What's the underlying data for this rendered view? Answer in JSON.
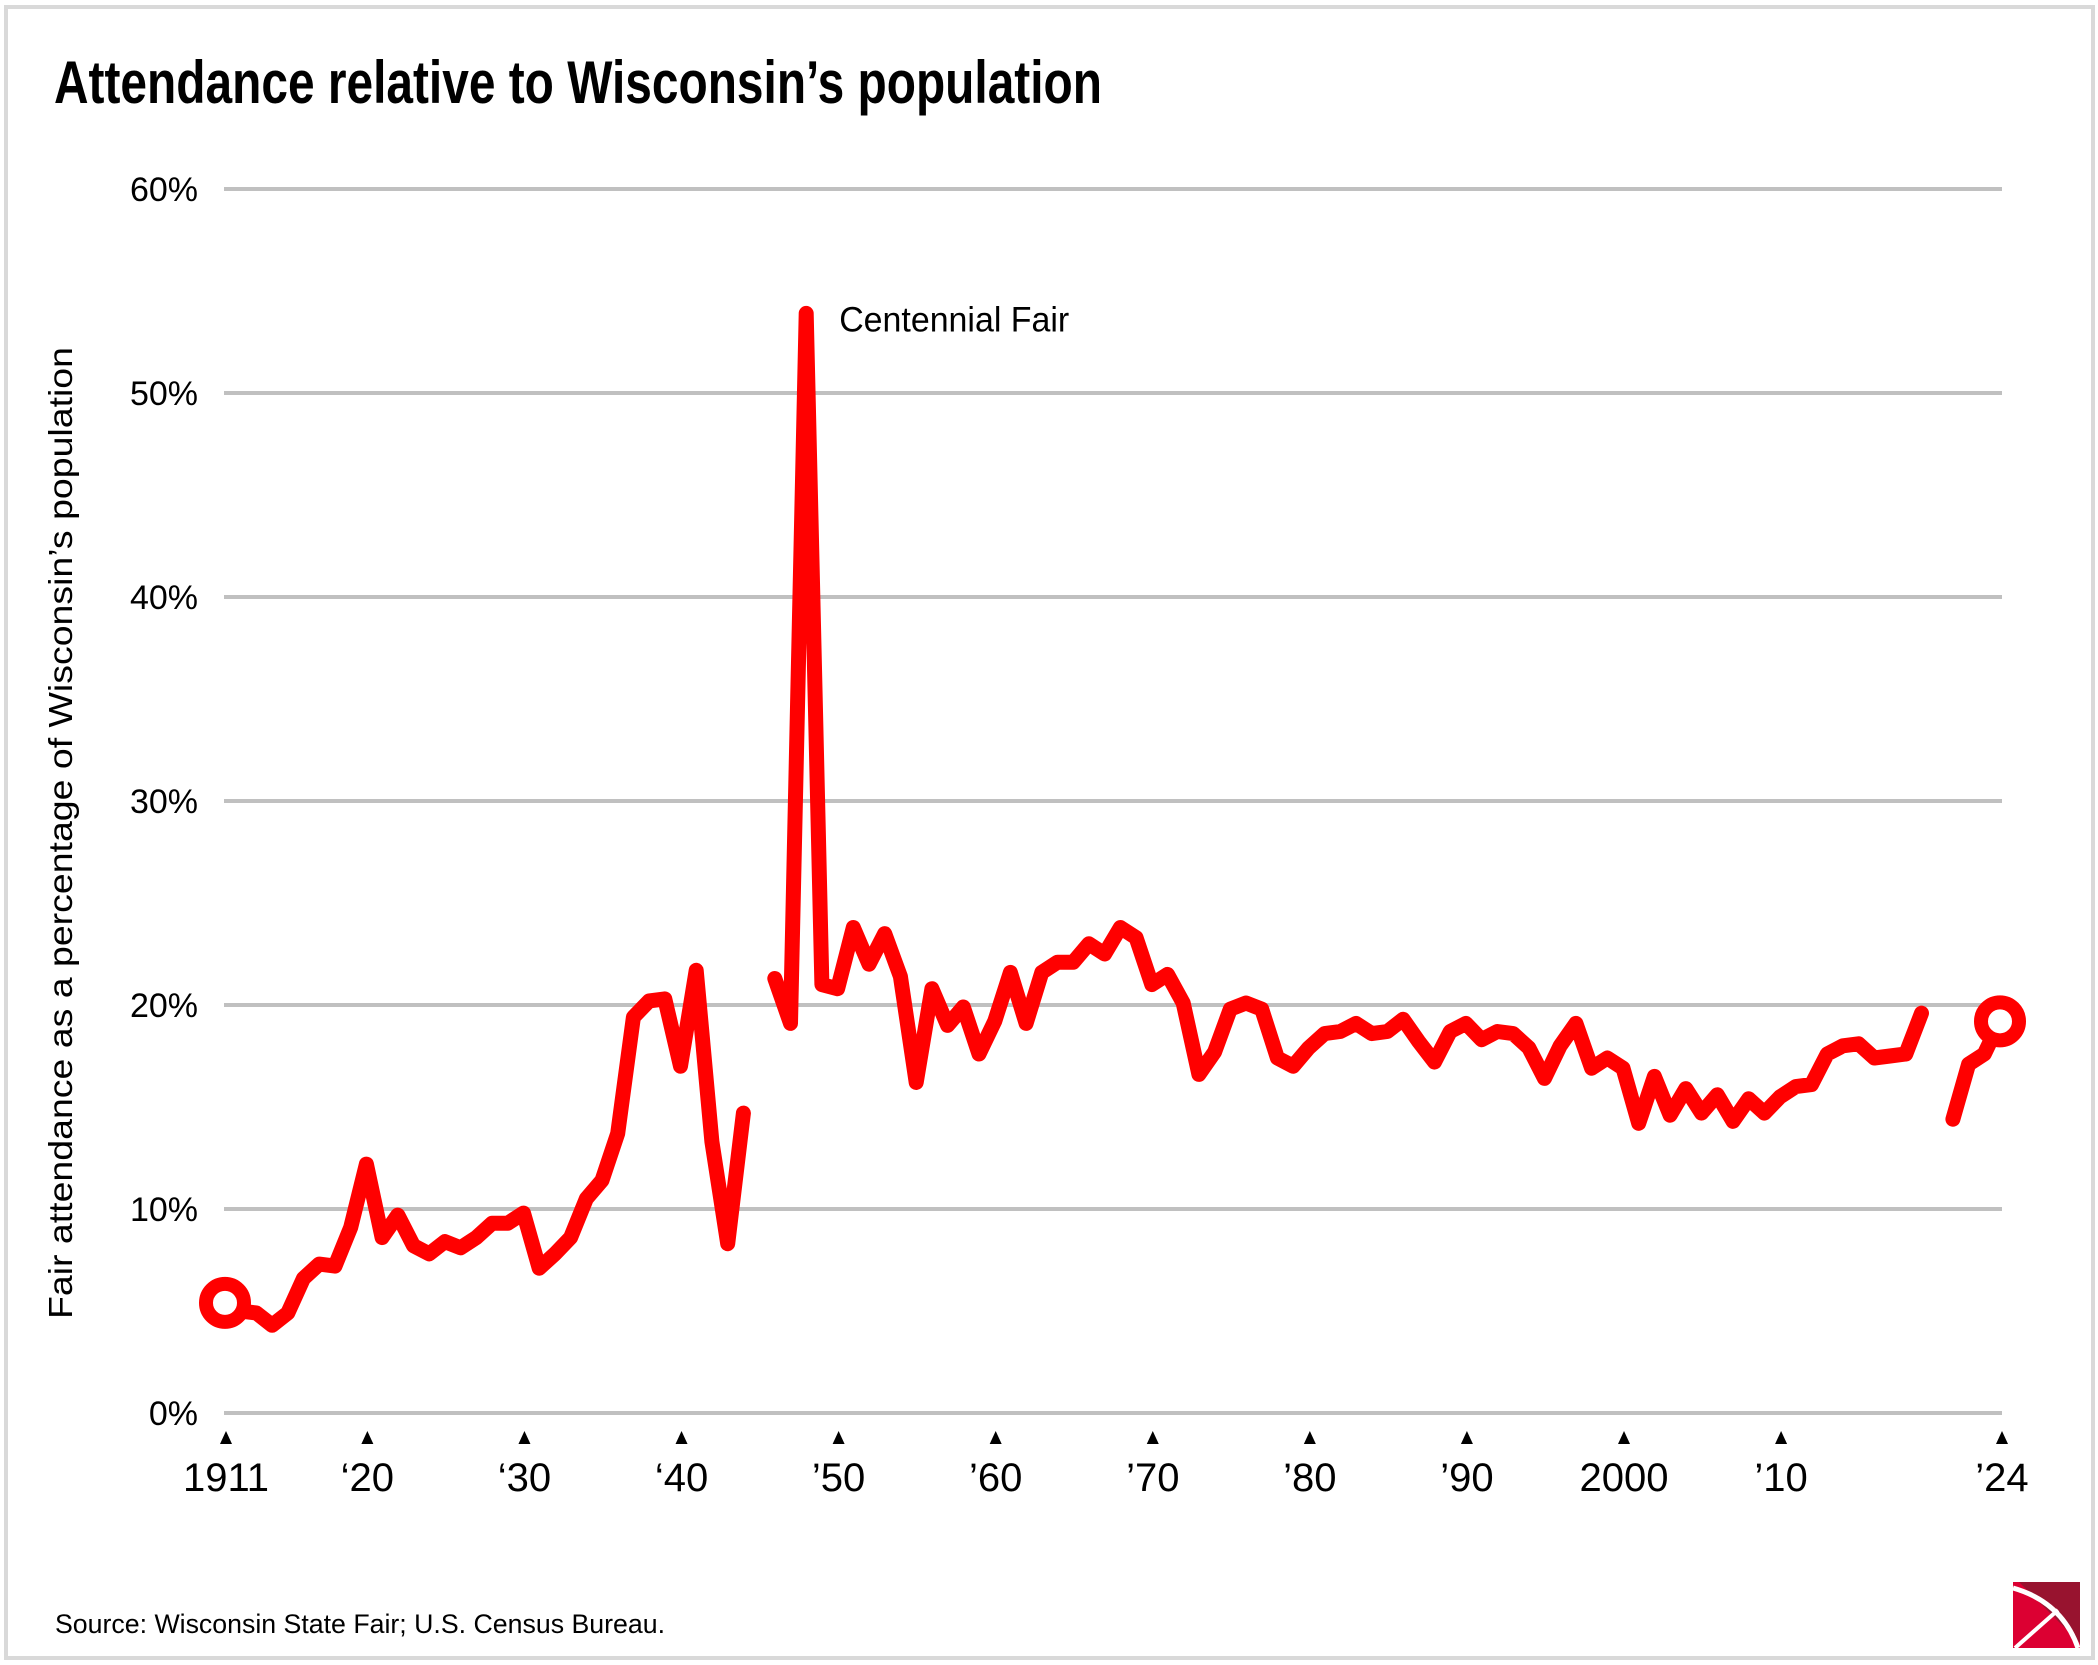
{
  "chart_data": {
    "type": "line",
    "title": "Attendance relative to Wisconsin’s population",
    "xlabel": "",
    "ylabel": "Fair attendance as a percentage of Wisconsin’s population",
    "ylim": [
      0,
      60
    ],
    "xlim": [
      1911,
      2024
    ],
    "grid": true,
    "y_ticks": [
      {
        "value": 0,
        "label": "0%"
      },
      {
        "value": 10,
        "label": "10%"
      },
      {
        "value": 20,
        "label": "20%"
      },
      {
        "value": 30,
        "label": "30%"
      },
      {
        "value": 40,
        "label": "40%"
      },
      {
        "value": 50,
        "label": "50%"
      },
      {
        "value": 60,
        "label": "60%"
      }
    ],
    "x_ticks": [
      {
        "year": 1911,
        "label": "1911"
      },
      {
        "year": 1920,
        "label": "‘20"
      },
      {
        "year": 1930,
        "label": "‘30"
      },
      {
        "year": 1940,
        "label": "‘40"
      },
      {
        "year": 1950,
        "label": "’50"
      },
      {
        "year": 1960,
        "label": "’60"
      },
      {
        "year": 1970,
        "label": "’70"
      },
      {
        "year": 1980,
        "label": "’80"
      },
      {
        "year": 1990,
        "label": "’90"
      },
      {
        "year": 2000,
        "label": "2000"
      },
      {
        "year": 2010,
        "label": "’10"
      },
      {
        "year": 2024,
        "label": "’24"
      }
    ],
    "series": [
      {
        "name": "Fair attendance as % of population",
        "color": "#ff0000",
        "segments": [
          {
            "x": [
              1911,
              1912,
              1913,
              1914,
              1915,
              1916,
              1917,
              1918,
              1919,
              1920,
              1921,
              1922,
              1923,
              1924,
              1925,
              1926,
              1927,
              1928,
              1929,
              1930,
              1931,
              1932,
              1933,
              1934,
              1935,
              1936,
              1937,
              1938,
              1939,
              1940,
              1941,
              1942,
              1943,
              1944
            ],
            "y": [
              5.4,
              5.0,
              4.9,
              4.3,
              4.9,
              6.6,
              7.3,
              7.2,
              9.1,
              12.2,
              8.6,
              9.7,
              8.2,
              7.8,
              8.4,
              8.1,
              8.6,
              9.3,
              9.3,
              9.8,
              7.1,
              7.8,
              8.6,
              10.5,
              11.4,
              13.7,
              19.4,
              20.2,
              20.3,
              17.0,
              21.7,
              13.3,
              8.3,
              14.7
            ]
          },
          {
            "x": [
              1946,
              1947,
              1948,
              1949,
              1950,
              1951,
              1952,
              1953,
              1954,
              1955,
              1956,
              1957,
              1958,
              1959,
              1960,
              1961,
              1962,
              1963,
              1964,
              1965,
              1966,
              1967,
              1968,
              1969,
              1970,
              1971,
              1972,
              1973,
              1974,
              1975,
              1976,
              1977,
              1978,
              1979,
              1980,
              1981,
              1982,
              1983,
              1984,
              1985,
              1986,
              1987,
              1988,
              1989,
              1990,
              1991,
              1992,
              1993,
              1994,
              1995,
              1996,
              1997,
              1998,
              1999,
              2000,
              2001,
              2002,
              2003,
              2004,
              2005,
              2006,
              2007,
              2008,
              2009,
              2010,
              2011,
              2012,
              2013,
              2014,
              2015,
              2016,
              2017,
              2018,
              2019
            ],
            "y": [
              21.3,
              19.1,
              53.9,
              21.0,
              20.8,
              23.8,
              22.0,
              23.5,
              21.4,
              16.2,
              20.8,
              19.0,
              19.9,
              17.6,
              19.2,
              21.6,
              19.1,
              21.6,
              22.1,
              22.1,
              23.0,
              22.5,
              23.8,
              23.3,
              21.0,
              21.5,
              20.1,
              16.6,
              17.7,
              19.8,
              20.1,
              19.8,
              17.4,
              17.0,
              17.9,
              18.6,
              18.7,
              19.1,
              18.6,
              18.7,
              19.3,
              18.2,
              17.2,
              18.7,
              19.1,
              18.3,
              18.7,
              18.6,
              17.9,
              16.4,
              18.0,
              19.1,
              16.9,
              17.4,
              16.9,
              14.2,
              16.5,
              14.6,
              15.9,
              14.7,
              15.6,
              14.3,
              15.4,
              14.7,
              15.5,
              16.0,
              16.1,
              17.6,
              18.0,
              18.1,
              17.4,
              17.5,
              17.6,
              19.6
            ]
          },
          {
            "x": [
              2021,
              2022,
              2023,
              2024
            ],
            "y": [
              14.4,
              17.1,
              17.6,
              19.2
            ]
          }
        ],
        "endpoint_markers": [
          {
            "year": 1911,
            "value": 5.4
          },
          {
            "year": 2024,
            "value": 19.2
          }
        ]
      }
    ],
    "annotations": [
      {
        "text": "Centennial Fair",
        "year": 1948,
        "value": 53.9
      }
    ],
    "legend": "none"
  },
  "footer": {
    "source": "Source: Wisconsin State Fair; U.S. Census Bureau."
  },
  "logo": {
    "name": "publisher-logo",
    "colors": {
      "primary": "#dc0032",
      "secondary": "#98132f"
    }
  }
}
